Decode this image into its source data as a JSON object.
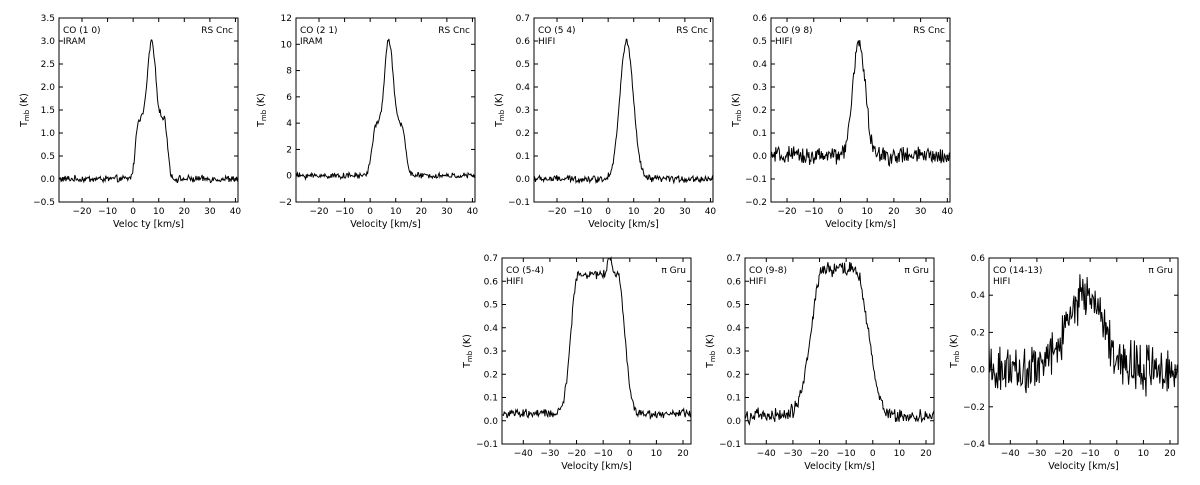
{
  "chart_data": [
    {
      "type": "line",
      "molecule": "CO (1 0)",
      "instrument": "IRAM",
      "source": "RS Cnc",
      "xlabel": "Veloc ty [km/s]",
      "ylabel": "T_mb (K)",
      "xlim": [
        -29,
        41
      ],
      "ylim": [
        -0.5,
        3.5
      ],
      "xticks": [
        -20,
        -10,
        0,
        10,
        20,
        30,
        40
      ],
      "yticks": [
        -0.5,
        0.0,
        0.5,
        1.0,
        1.5,
        2.0,
        2.5,
        3.0,
        3.5
      ],
      "ytick_labels": [
        "−0.5",
        "0.0",
        "0.5",
        "1.0",
        "1.5",
        "2.0",
        "2.5",
        "3.0",
        "3.5"
      ],
      "xtick_labels": [
        "−20",
        "−10",
        "0",
        "10",
        "20",
        "30",
        "40"
      ],
      "profile": {
        "center": 7.2,
        "peak": 3.0,
        "shape": "double_horn",
        "core_half": 1.5,
        "shoulder": 1.3,
        "shoulder_half": 5.0,
        "edge": 1.2,
        "noise": 0.06,
        "base": 0.0
      },
      "series": [
        {
          "x": [],
          "y": []
        }
      ]
    },
    {
      "type": "line",
      "molecule": "CO (2 1)",
      "instrument": "IRAM",
      "source": "RS Cnc",
      "xlabel": "Velocity [km/s]",
      "ylabel": "T_mb (K)",
      "xlim": [
        -29,
        41
      ],
      "ylim": [
        -2,
        12
      ],
      "xticks": [
        -20,
        -10,
        0,
        10,
        20,
        30,
        40
      ],
      "yticks": [
        -2,
        0,
        2,
        4,
        6,
        8,
        10,
        12
      ],
      "ytick_labels": [
        "−2",
        "0",
        "2",
        "4",
        "6",
        "8",
        "10",
        "12"
      ],
      "xtick_labels": [
        "−20",
        "−10",
        "0",
        "10",
        "20",
        "30",
        "40"
      ],
      "profile": {
        "center": 7.3,
        "peak": 10.4,
        "shape": "double_horn",
        "core_half": 1.6,
        "shoulder": 3.8,
        "shoulder_half": 5.0,
        "edge": 1.5,
        "noise": 0.18,
        "base": 0.0
      },
      "series": [
        {
          "x": [],
          "y": []
        }
      ]
    },
    {
      "type": "line",
      "molecule": "CO (5 4)",
      "instrument": "HIFI",
      "source": "RS Cnc",
      "xlabel": "Velocity [km/s]",
      "ylabel": "T_mb (K)",
      "xlim": [
        -29,
        41
      ],
      "ylim": [
        -0.1,
        0.7
      ],
      "xticks": [
        -20,
        -10,
        0,
        10,
        20,
        30,
        40
      ],
      "yticks": [
        -0.1,
        0.0,
        0.1,
        0.2,
        0.3,
        0.4,
        0.5,
        0.6,
        0.7
      ],
      "ytick_labels": [
        "−0.1",
        "0.0",
        "0.1",
        "0.2",
        "0.3",
        "0.4",
        "0.5",
        "0.6",
        "0.7"
      ],
      "xtick_labels": [
        "−20",
        "−10",
        "0",
        "10",
        "20",
        "30",
        "40"
      ],
      "profile": {
        "center": 7.2,
        "peak": 0.6,
        "shape": "gauss",
        "width": 2.6,
        "noise": 0.012,
        "base": 0.0
      },
      "series": [
        {
          "x": [],
          "y": []
        }
      ]
    },
    {
      "type": "line",
      "molecule": "CO (9 8)",
      "instrument": "HIFI",
      "source": "RS Cnc",
      "xlabel": "Velocity [km/s]",
      "ylabel": "T_mb (K)",
      "xlim": [
        -26,
        41
      ],
      "ylim": [
        -0.2,
        0.6
      ],
      "xticks": [
        -20,
        -10,
        0,
        10,
        20,
        30,
        40
      ],
      "yticks": [
        -0.2,
        -0.1,
        0.0,
        0.1,
        0.2,
        0.3,
        0.4,
        0.5,
        0.6
      ],
      "ytick_labels": [
        "−0.2",
        "−0.1",
        "0.0",
        "0.1",
        "0.2",
        "0.3",
        "0.4",
        "0.5",
        "0.6"
      ],
      "xtick_labels": [
        "−20",
        "−10",
        "0",
        "10",
        "20",
        "30",
        "40"
      ],
      "profile": {
        "center": 7.0,
        "peak": 0.5,
        "shape": "gauss",
        "width": 2.3,
        "noise": 0.03,
        "base": 0.0
      },
      "series": [
        {
          "x": [],
          "y": []
        }
      ]
    },
    {
      "type": "line",
      "molecule": "CO (5-4)",
      "instrument": "HIFI",
      "source": "π Gru",
      "xlabel": "Velocity [km/s]",
      "ylabel": "T_mb (K)",
      "xlim": [
        -48,
        23
      ],
      "ylim": [
        -0.1,
        0.7
      ],
      "xticks": [
        -40,
        -30,
        -20,
        -10,
        0,
        10,
        20
      ],
      "yticks": [
        -0.1,
        0.0,
        0.1,
        0.2,
        0.3,
        0.4,
        0.5,
        0.6,
        0.7
      ],
      "ytick_labels": [
        "−0.1",
        "0.0",
        "0.1",
        "0.2",
        "0.3",
        "0.4",
        "0.5",
        "0.6",
        "0.7"
      ],
      "xtick_labels": [
        "−40",
        "−30",
        "−20",
        "−10",
        "0",
        "10",
        "20"
      ],
      "profile": {
        "center": -12,
        "peak": 0.6,
        "shape": "flattop",
        "half": 7.5,
        "edge": 2.5,
        "spike": 0.08,
        "spike_v": -7.5,
        "noise": 0.015,
        "base": 0.03
      },
      "series": [
        {
          "x": [],
          "y": []
        }
      ]
    },
    {
      "type": "line",
      "molecule": "CO (9-8)",
      "instrument": "HIFI",
      "source": "π Gru",
      "xlabel": "Velocity [km/s]",
      "ylabel": "T_mb (K)",
      "xlim": [
        -48,
        23
      ],
      "ylim": [
        -0.1,
        0.7
      ],
      "xticks": [
        -40,
        -30,
        -20,
        -10,
        0,
        10,
        20
      ],
      "yticks": [
        -0.1,
        0.0,
        0.1,
        0.2,
        0.3,
        0.4,
        0.5,
        0.6,
        0.7
      ],
      "ytick_labels": [
        "−0.1",
        "0.0",
        "0.1",
        "0.2",
        "0.3",
        "0.4",
        "0.5",
        "0.6",
        "0.7"
      ],
      "xtick_labels": [
        "−40",
        "−30",
        "−20",
        "−10",
        "0",
        "10",
        "20"
      ],
      "profile": {
        "center": -12.5,
        "peak": 0.63,
        "shape": "flattop",
        "half": 6.0,
        "edge": 4.5,
        "noise": 0.025,
        "base": 0.02
      },
      "series": [
        {
          "x": [],
          "y": []
        }
      ]
    },
    {
      "type": "line",
      "molecule": "CO (14-13)",
      "instrument": "HIFI",
      "source": "π Gru",
      "xlabel": "Velocity [km/s]",
      "ylabel": "T_mb (K)",
      "xlim": [
        -48,
        23
      ],
      "ylim": [
        -0.4,
        0.6
      ],
      "xticks": [
        -40,
        -30,
        -20,
        -10,
        0,
        10,
        20
      ],
      "yticks": [
        -0.4,
        -0.2,
        0.0,
        0.2,
        0.4,
        0.6
      ],
      "ytick_labels": [
        "−0.4",
        "−0.2",
        "0.0",
        "0.2",
        "0.4",
        "0.6"
      ],
      "xtick_labels": [
        "−40",
        "−30",
        "−20",
        "−10",
        "0",
        "10",
        "20"
      ],
      "profile": {
        "center": -12,
        "peak": 0.4,
        "shape": "gauss",
        "width": 7.0,
        "noise": 0.1,
        "base": 0.0
      },
      "series": [
        {
          "x": [],
          "y": []
        }
      ]
    }
  ]
}
